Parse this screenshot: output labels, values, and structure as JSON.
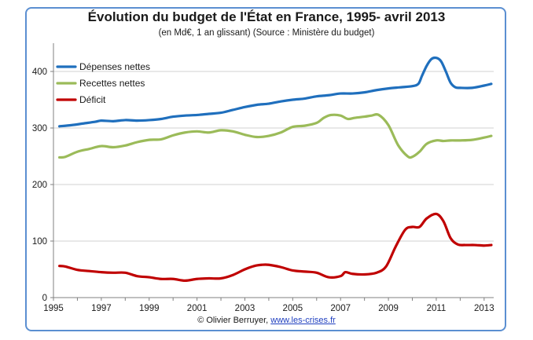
{
  "chart_data": {
    "type": "line",
    "title": "Évolution du budget de l'État en France, 1995- avril 2013",
    "subtitle": "(en Md€, 1 an glissant) (Source : Ministère du budget)",
    "xlabel": "",
    "ylabel": "",
    "xlim": [
      1995,
      2013.4
    ],
    "ylim": [
      0,
      450
    ],
    "x_ticks": [
      "1995",
      "1997",
      "1999",
      "2001",
      "2003",
      "2005",
      "2007",
      "2009",
      "2011",
      "2013"
    ],
    "y_ticks": [
      "0",
      "100",
      "200",
      "300",
      "400"
    ],
    "grid": "horizontal",
    "legend": "top-left",
    "series": [
      {
        "name": "Dépenses nettes",
        "color": "#1f6fbd",
        "x": [
          1995.25,
          1995.75,
          1996.25,
          1996.75,
          1997.0,
          1997.5,
          1998.0,
          1998.5,
          1999.0,
          1999.5,
          2000.0,
          2000.5,
          2001.0,
          2001.5,
          2002.0,
          2002.5,
          2003.0,
          2003.5,
          2004.0,
          2004.5,
          2005.0,
          2005.5,
          2006.0,
          2006.5,
          2007.0,
          2007.5,
          2008.0,
          2008.5,
          2009.0,
          2009.5,
          2010.0,
          2010.25,
          2010.4,
          2010.6,
          2010.8,
          2011.0,
          2011.2,
          2011.4,
          2011.6,
          2011.8,
          2012.0,
          2012.5,
          2013.0,
          2013.3
        ],
        "values": [
          303,
          305,
          308,
          311,
          313,
          312,
          314,
          313,
          314,
          316,
          320,
          322,
          323,
          325,
          327,
          332,
          337,
          341,
          343,
          347,
          350,
          352,
          356,
          358,
          361,
          361,
          363,
          367,
          370,
          372,
          374,
          378,
          392,
          410,
          422,
          424,
          418,
          400,
          380,
          372,
          371,
          371,
          375,
          378
        ]
      },
      {
        "name": "Recettes nettes",
        "color": "#9bbb59",
        "x": [
          1995.25,
          1995.5,
          1996.0,
          1996.5,
          1997.0,
          1997.5,
          1998.0,
          1998.5,
          1999.0,
          1999.5,
          2000.0,
          2000.5,
          2001.0,
          2001.5,
          2002.0,
          2002.5,
          2003.0,
          2003.5,
          2004.0,
          2004.5,
          2005.0,
          2005.5,
          2006.0,
          2006.3,
          2006.6,
          2007.0,
          2007.3,
          2007.6,
          2008.0,
          2008.3,
          2008.6,
          2009.0,
          2009.4,
          2009.8,
          2010.0,
          2010.3,
          2010.6,
          2011.0,
          2011.3,
          2011.6,
          2012.0,
          2012.5,
          2013.0,
          2013.3
        ],
        "values": [
          248,
          249,
          258,
          263,
          268,
          266,
          269,
          275,
          279,
          280,
          287,
          292,
          294,
          292,
          296,
          294,
          288,
          284,
          286,
          292,
          302,
          304,
          309,
          318,
          323,
          322,
          316,
          318,
          320,
          322,
          323,
          305,
          270,
          250,
          249,
          258,
          272,
          278,
          277,
          278,
          278,
          279,
          283,
          286
        ]
      },
      {
        "name": "Déficit",
        "color": "#c00000",
        "x": [
          1995.25,
          1995.5,
          1996.0,
          1996.5,
          1997.0,
          1997.5,
          1998.0,
          1998.5,
          1999.0,
          1999.5,
          2000.0,
          2000.5,
          2001.0,
          2001.5,
          2002.0,
          2002.5,
          2003.0,
          2003.4,
          2003.7,
          2004.0,
          2004.5,
          2005.0,
          2005.5,
          2006.0,
          2006.5,
          2007.0,
          2007.2,
          2007.5,
          2008.0,
          2008.5,
          2008.9,
          2009.3,
          2009.7,
          2010.0,
          2010.3,
          2010.6,
          2011.0,
          2011.3,
          2011.6,
          2011.9,
          2012.2,
          2012.6,
          2013.0,
          2013.3
        ],
        "values": [
          56,
          55,
          49,
          47,
          45,
          44,
          44,
          38,
          36,
          33,
          33,
          30,
          33,
          34,
          34,
          40,
          50,
          56,
          58,
          58,
          54,
          48,
          46,
          44,
          36,
          38,
          45,
          42,
          41,
          44,
          55,
          90,
          120,
          125,
          125,
          140,
          148,
          135,
          105,
          94,
          93,
          93,
          92,
          93
        ]
      }
    ]
  },
  "credit": {
    "prefix": "© Olivier Berruyer, ",
    "link": "www.les-crises.fr"
  }
}
